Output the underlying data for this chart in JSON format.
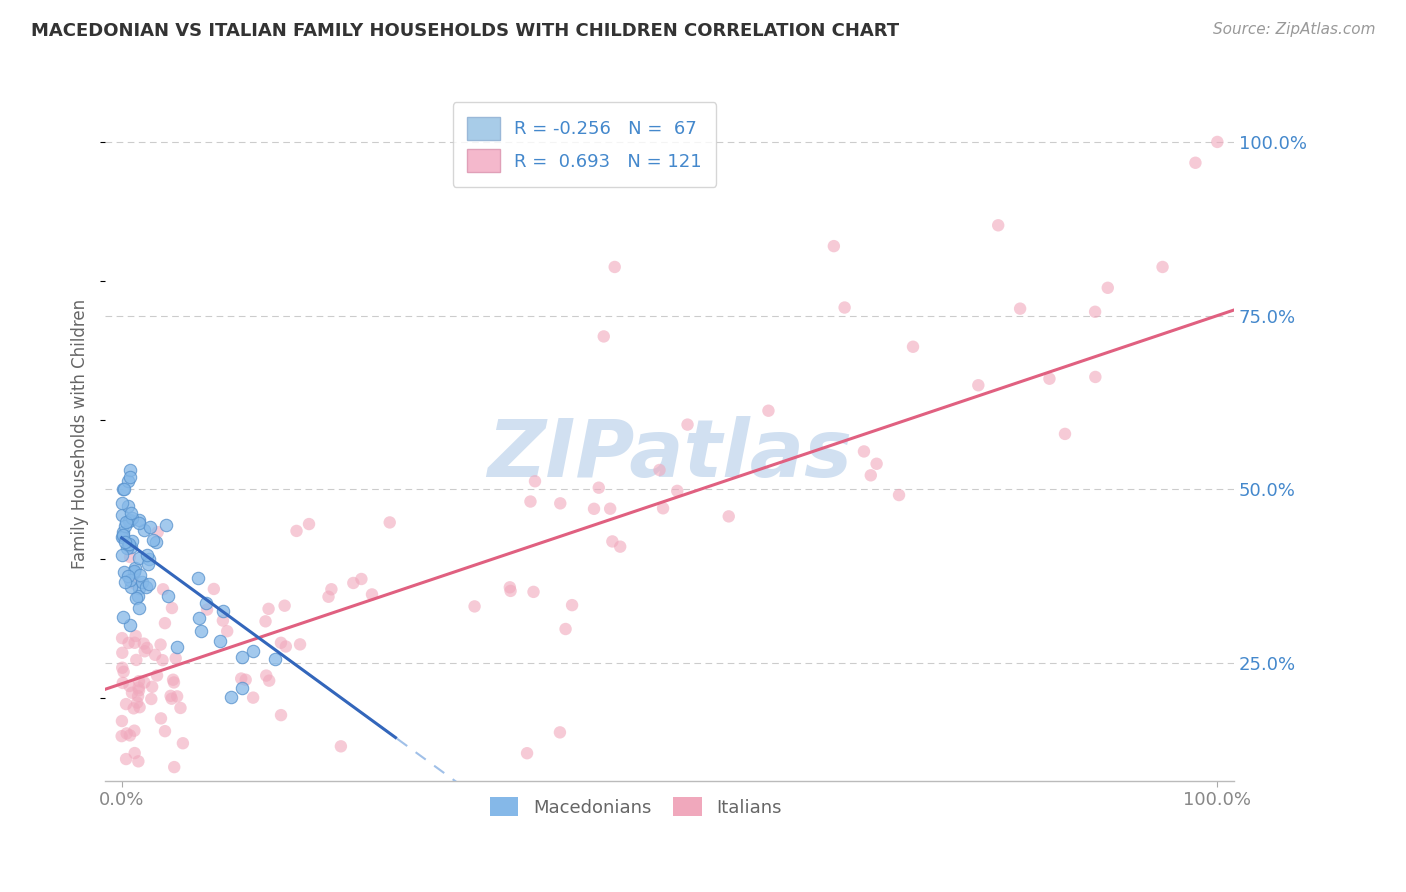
{
  "title": "MACEDONIAN VS ITALIAN FAMILY HOUSEHOLDS WITH CHILDREN CORRELATION CHART",
  "source": "Source: ZipAtlas.com",
  "ylabel": "Family Households with Children",
  "macedonian_color": "#85b8e8",
  "macedonian_edge": "#5590cc",
  "italian_color": "#f0a8bc",
  "italian_edge": "#e07090",
  "macedonian_line_color": "#3366bb",
  "macedonian_dash_color": "#a0c0e8",
  "italian_line_color": "#e06080",
  "watermark_text": "ZIPatlas",
  "watermark_color": "#ccddf0",
  "background_color": "#ffffff",
  "grid_color": "#cccccc",
  "right_tick_color": "#4488cc",
  "bottom_tick_color": "#888888",
  "title_color": "#333333",
  "source_color": "#999999",
  "ylabel_color": "#666666",
  "legend_label_color": "#4488cc",
  "bottom_legend_color": "#666666",
  "marker_size": 80,
  "marker_alpha": 0.6,
  "line_width": 2.2
}
